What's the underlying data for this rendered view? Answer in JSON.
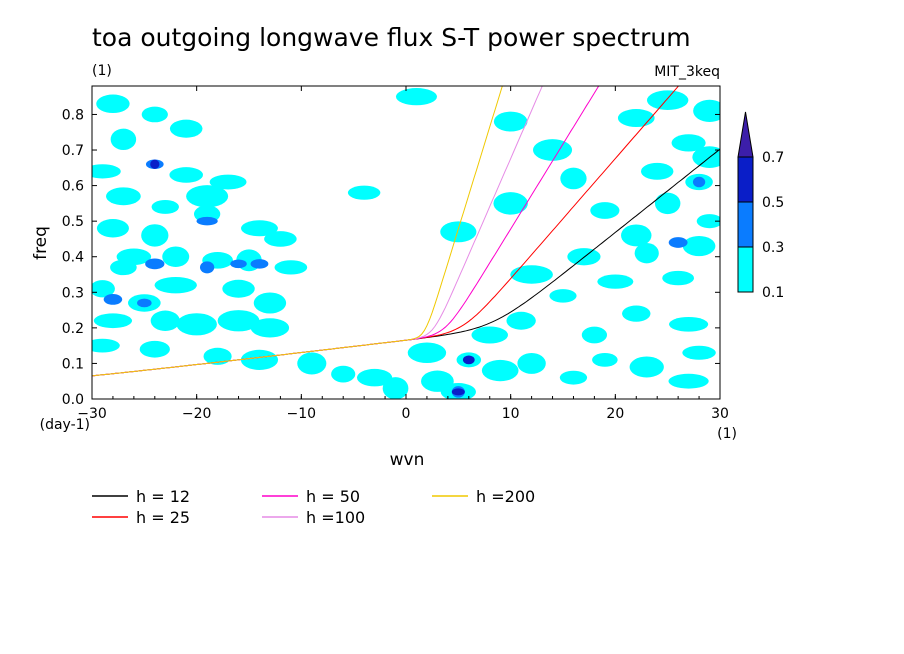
{
  "chart_data": {
    "type": "heatmap",
    "title": "toa outgoing longwave flux S-T power spectrum",
    "subtitle_left": "(1)",
    "subtitle_right": "MIT_3keq",
    "xlabel": "wvn",
    "ylabel": "freq",
    "x_unit_label": "(1)",
    "y_unit_label": "(day-1)",
    "xlim": [
      -30,
      30
    ],
    "ylim": [
      0,
      0.88
    ],
    "xticks": [
      -30,
      -20,
      -10,
      0,
      10,
      20,
      30
    ],
    "xtick_labels": [
      "−30",
      "−20",
      "−10",
      "0",
      "10",
      "20",
      "30"
    ],
    "yticks": [
      0.0,
      0.1,
      0.2,
      0.3,
      0.4,
      0.5,
      0.6,
      0.7,
      0.8
    ],
    "ytick_labels": [
      "0.0",
      "0.1",
      "0.2",
      "0.3",
      "0.4",
      "0.5",
      "0.6",
      "0.7",
      "0.8"
    ],
    "contour_levels": [
      0.1,
      0.3,
      0.5,
      0.7
    ],
    "contour_level_labels": [
      "0.1",
      "0.3",
      "0.5",
      "0.7"
    ],
    "contour_colors": [
      "#00ffff",
      "#0a7cff",
      "#0a1ec8",
      "#3c1eaa"
    ],
    "blobs": [
      {
        "x": -28,
        "y": 0.83,
        "level": 0.1
      },
      {
        "x": -24,
        "y": 0.8,
        "level": 0.1
      },
      {
        "x": -21,
        "y": 0.76,
        "level": 0.1
      },
      {
        "x": -27,
        "y": 0.73,
        "level": 0.1
      },
      {
        "x": -24,
        "y": 0.66,
        "level": 0.3
      },
      {
        "x": -24,
        "y": 0.66,
        "level": 0.5
      },
      {
        "x": -29,
        "y": 0.64,
        "level": 0.1
      },
      {
        "x": -21,
        "y": 0.63,
        "level": 0.1
      },
      {
        "x": -17,
        "y": 0.61,
        "level": 0.1
      },
      {
        "x": -27,
        "y": 0.57,
        "level": 0.1
      },
      {
        "x": -23,
        "y": 0.54,
        "level": 0.1
      },
      {
        "x": -19,
        "y": 0.57,
        "level": 0.1
      },
      {
        "x": -19,
        "y": 0.52,
        "level": 0.1
      },
      {
        "x": -19,
        "y": 0.5,
        "level": 0.3
      },
      {
        "x": -28,
        "y": 0.48,
        "level": 0.1
      },
      {
        "x": -14,
        "y": 0.48,
        "level": 0.1
      },
      {
        "x": -24,
        "y": 0.46,
        "level": 0.1
      },
      {
        "x": -12,
        "y": 0.45,
        "level": 0.1
      },
      {
        "x": -26,
        "y": 0.4,
        "level": 0.1
      },
      {
        "x": -22,
        "y": 0.4,
        "level": 0.1
      },
      {
        "x": -18,
        "y": 0.39,
        "level": 0.1
      },
      {
        "x": -15,
        "y": 0.39,
        "level": 0.1
      },
      {
        "x": -19,
        "y": 0.37,
        "level": 0.3
      },
      {
        "x": -16,
        "y": 0.38,
        "level": 0.3
      },
      {
        "x": -14,
        "y": 0.38,
        "level": 0.3
      },
      {
        "x": -24,
        "y": 0.38,
        "level": 0.3
      },
      {
        "x": -27,
        "y": 0.37,
        "level": 0.1
      },
      {
        "x": -11,
        "y": 0.37,
        "level": 0.1
      },
      {
        "x": -29,
        "y": 0.31,
        "level": 0.1
      },
      {
        "x": -28,
        "y": 0.28,
        "level": 0.3
      },
      {
        "x": -22,
        "y": 0.32,
        "level": 0.1
      },
      {
        "x": -16,
        "y": 0.31,
        "level": 0.1
      },
      {
        "x": -13,
        "y": 0.27,
        "level": 0.1
      },
      {
        "x": -25,
        "y": 0.27,
        "level": 0.1
      },
      {
        "x": -25,
        "y": 0.27,
        "level": 0.3
      },
      {
        "x": -28,
        "y": 0.22,
        "level": 0.1
      },
      {
        "x": -23,
        "y": 0.22,
        "level": 0.1
      },
      {
        "x": -20,
        "y": 0.21,
        "level": 0.1
      },
      {
        "x": -16,
        "y": 0.22,
        "level": 0.1
      },
      {
        "x": -13,
        "y": 0.2,
        "level": 0.1
      },
      {
        "x": -29,
        "y": 0.15,
        "level": 0.1
      },
      {
        "x": -24,
        "y": 0.14,
        "level": 0.1
      },
      {
        "x": -18,
        "y": 0.12,
        "level": 0.1
      },
      {
        "x": -14,
        "y": 0.11,
        "level": 0.1
      },
      {
        "x": -9,
        "y": 0.1,
        "level": 0.1
      },
      {
        "x": -6,
        "y": 0.07,
        "level": 0.1
      },
      {
        "x": -3,
        "y": 0.06,
        "level": 0.1
      },
      {
        "x": -1,
        "y": 0.03,
        "level": 0.1
      },
      {
        "x": 3,
        "y": 0.05,
        "level": 0.1
      },
      {
        "x": 5,
        "y": 0.02,
        "level": 0.1
      },
      {
        "x": 5,
        "y": 0.02,
        "level": 0.3
      },
      {
        "x": 5,
        "y": 0.02,
        "level": 0.5
      },
      {
        "x": 6,
        "y": 0.11,
        "level": 0.1
      },
      {
        "x": 6,
        "y": 0.11,
        "level": 0.5
      },
      {
        "x": 9,
        "y": 0.08,
        "level": 0.1
      },
      {
        "x": 12,
        "y": 0.1,
        "level": 0.1
      },
      {
        "x": 16,
        "y": 0.06,
        "level": 0.1
      },
      {
        "x": 19,
        "y": 0.11,
        "level": 0.1
      },
      {
        "x": 23,
        "y": 0.09,
        "level": 0.1
      },
      {
        "x": 27,
        "y": 0.05,
        "level": 0.1
      },
      {
        "x": 28,
        "y": 0.13,
        "level": 0.1
      },
      {
        "x": 11,
        "y": 0.22,
        "level": 0.1
      },
      {
        "x": 18,
        "y": 0.18,
        "level": 0.1
      },
      {
        "x": 22,
        "y": 0.24,
        "level": 0.1
      },
      {
        "x": 27,
        "y": 0.21,
        "level": 0.1
      },
      {
        "x": 15,
        "y": 0.29,
        "level": 0.1
      },
      {
        "x": 20,
        "y": 0.33,
        "level": 0.1
      },
      {
        "x": 26,
        "y": 0.34,
        "level": 0.1
      },
      {
        "x": 17,
        "y": 0.4,
        "level": 0.1
      },
      {
        "x": 23,
        "y": 0.41,
        "level": 0.1
      },
      {
        "x": 28,
        "y": 0.43,
        "level": 0.1
      },
      {
        "x": 22,
        "y": 0.46,
        "level": 0.1
      },
      {
        "x": 26,
        "y": 0.44,
        "level": 0.3
      },
      {
        "x": 19,
        "y": 0.53,
        "level": 0.1
      },
      {
        "x": 25,
        "y": 0.55,
        "level": 0.1
      },
      {
        "x": 29,
        "y": 0.5,
        "level": 0.1
      },
      {
        "x": 28,
        "y": 0.61,
        "level": 0.1
      },
      {
        "x": 28,
        "y": 0.61,
        "level": 0.3
      },
      {
        "x": 24,
        "y": 0.64,
        "level": 0.1
      },
      {
        "x": 29,
        "y": 0.68,
        "level": 0.1
      },
      {
        "x": 27,
        "y": 0.72,
        "level": 0.1
      },
      {
        "x": 16,
        "y": 0.62,
        "level": 0.1
      },
      {
        "x": 22,
        "y": 0.79,
        "level": 0.1
      },
      {
        "x": 25,
        "y": 0.84,
        "level": 0.1
      },
      {
        "x": 29,
        "y": 0.81,
        "level": 0.1
      },
      {
        "x": 1,
        "y": 0.85,
        "level": 0.1
      },
      {
        "x": 10,
        "y": 0.78,
        "level": 0.1
      },
      {
        "x": 14,
        "y": 0.7,
        "level": 0.1
      },
      {
        "x": 10,
        "y": 0.55,
        "level": 0.1
      },
      {
        "x": 5,
        "y": 0.47,
        "level": 0.1
      },
      {
        "x": -4,
        "y": 0.58,
        "level": 0.1
      },
      {
        "x": 12,
        "y": 0.35,
        "level": 0.1
      },
      {
        "x": 8,
        "y": 0.18,
        "level": 0.1
      },
      {
        "x": 2,
        "y": 0.13,
        "level": 0.1
      }
    ],
    "series": [
      {
        "name": "h = 12",
        "h": 12,
        "color": "#000000"
      },
      {
        "name": "h = 25",
        "h": 25,
        "color": "#ff0000"
      },
      {
        "name": "h = 50",
        "h": 50,
        "color": "#ff00cc"
      },
      {
        "name": "h =100",
        "h": 100,
        "color": "#e68ce6"
      },
      {
        "name": "h =200",
        "h": 200,
        "color": "#f0c800"
      }
    ]
  }
}
